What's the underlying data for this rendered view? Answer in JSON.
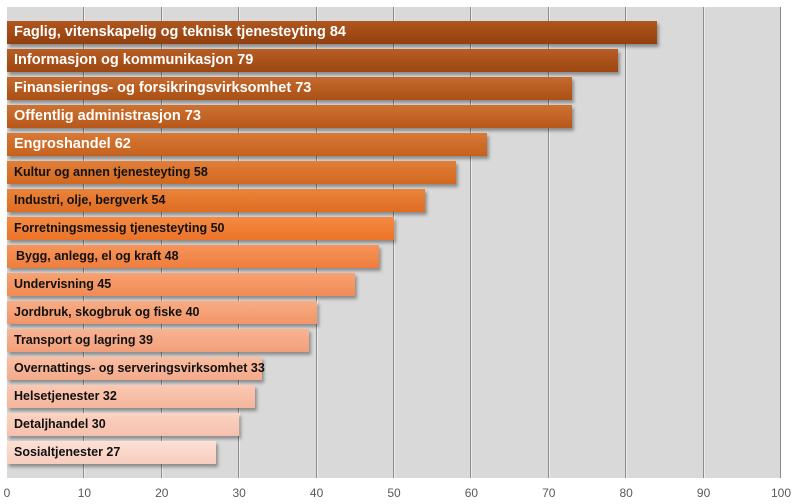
{
  "chart_data": {
    "type": "bar",
    "orientation": "horizontal",
    "title": "",
    "xlabel": "",
    "ylabel": "",
    "xlim": [
      0,
      100
    ],
    "grid": true,
    "legend": null,
    "x_ticks": [
      "0",
      "10",
      "20",
      "30",
      "40",
      "50",
      "60",
      "70",
      "80",
      "90",
      "100"
    ],
    "categories": [
      "Faglig, vitenskapelig og teknisk tjenesteyting",
      "Informasjon og kommunikasjon",
      "Finansierings- og forsikringsvirksomhet",
      "Offentlig administrasjon",
      "Engroshandel",
      "Kultur og annen tjenesteyting",
      "Industri, olje, bergverk",
      "Forretningsmessig tjenesteyting",
      "Bygg, anlegg, el og kraft",
      "Undervisning",
      "Jordbruk, skogbruk og fiske",
      "Transport og lagring",
      "Overnattings- og serveringsvirksomhet",
      "Helsetjenester",
      "Detaljhandel",
      "Sosialtjenester"
    ],
    "values": [
      84,
      79,
      73,
      73,
      62,
      58,
      54,
      50,
      48,
      45,
      40,
      39,
      33,
      32,
      30,
      27
    ],
    "bars": [
      {
        "label": "Faglig, vitenskapelig og teknisk tjenesteyting 84",
        "value": 84,
        "color_top": "#b0571f",
        "color_bottom": "#93400e",
        "text_color": "#ffffff"
      },
      {
        "label": "Informasjon og kommunikasjon 79",
        "value": 79,
        "color_top": "#b75e23",
        "color_bottom": "#9c4611",
        "text_color": "#ffffff"
      },
      {
        "label": "Finansierings- og forsikringsvirksomhet 73",
        "value": 73,
        "color_top": "#c56a2c",
        "color_bottom": "#ab5016",
        "text_color": "#ffffff"
      },
      {
        "label": "Offentlig administrasjon 73",
        "value": 73,
        "color_top": "#cd7232",
        "color_bottom": "#b8581a",
        "text_color": "#ffffff"
      },
      {
        "label": "Engroshandel 62",
        "value": 62,
        "color_top": "#d77936",
        "color_bottom": "#c5611d",
        "text_color": "#ffffff"
      },
      {
        "label": "Kultur og annen tjenesteyting 58",
        "value": 58,
        "color_top": "#e07e38",
        "color_bottom": "#d3681f",
        "text_color": "#111111"
      },
      {
        "label": "Industri, olje, bergverk 54",
        "value": 54,
        "color_top": "#ea833a",
        "color_bottom": "#de6d21",
        "text_color": "#111111"
      },
      {
        "label": "Forretningsmessig tjenesteyting 50",
        "value": 50,
        "color_top": "#f48b43",
        "color_bottom": "#ec7427",
        "text_color": "#111111"
      },
      {
        "label": "Bygg, anlegg, el og kraft 48",
        "value": 48,
        "color_top": "#f7955a",
        "color_bottom": "#ee7d3d",
        "text_color": "#111111"
      },
      {
        "label": "Undervisning 45",
        "value": 45,
        "color_top": "#f8a272",
        "color_bottom": "#f08b56",
        "text_color": "#111111"
      },
      {
        "label": "Jordbruk, skogbruk og fiske 40",
        "value": 40,
        "color_top": "#f8ac84",
        "color_bottom": "#f19669",
        "text_color": "#111111"
      },
      {
        "label": "Transport og lagring 39",
        "value": 39,
        "color_top": "#f9b493",
        "color_bottom": "#f29f7a",
        "text_color": "#111111"
      },
      {
        "label": "Overnattings- og serveringsvirksomhet 33",
        "value": 33,
        "color_top": "#fabea2",
        "color_bottom": "#f3aa8b",
        "text_color": "#111111"
      },
      {
        "label": "Helsetjenester 32",
        "value": 32,
        "color_top": "#fbc8b2",
        "color_bottom": "#f4b59c",
        "text_color": "#111111"
      },
      {
        "label": "Detaljhandel 30",
        "value": 30,
        "color_top": "#fcd3c2",
        "color_bottom": "#f5c0ad",
        "text_color": "#111111"
      },
      {
        "label": "Sosialtjenester 27",
        "value": 27,
        "color_top": "#fde0d4",
        "color_bottom": "#f6cdbe",
        "text_color": "#111111"
      }
    ]
  },
  "colors": {
    "plot_background": "#d9d9d9",
    "gridline": "#8c8c8c",
    "tick_label": "#595959"
  }
}
